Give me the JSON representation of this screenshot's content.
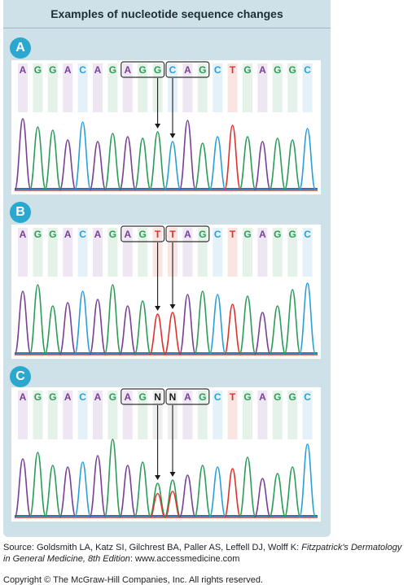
{
  "figure": {
    "title": "Examples of nucleotide sequence changes"
  },
  "colors": {
    "A": "#7a3f96",
    "G": "#2a9d57",
    "C": "#2aa0d8",
    "T": "#e0322c",
    "N": "#1a1a1a",
    "badge": "#2aa8cf",
    "panel_bg": "#cfe1e8"
  },
  "panels": [
    {
      "badge": "A",
      "sequence": [
        "A",
        "G",
        "G",
        "A",
        "C",
        "A",
        "G",
        "A",
        "G",
        "G",
        "C",
        "A",
        "G",
        "C",
        "T",
        "G",
        "A",
        "G",
        "G",
        "C"
      ],
      "boxed_groups": [
        [
          7,
          9
        ],
        [
          10,
          12
        ]
      ],
      "arrow_targets": [
        9,
        10
      ]
    },
    {
      "badge": "B",
      "sequence": [
        "A",
        "G",
        "G",
        "A",
        "C",
        "A",
        "G",
        "A",
        "G",
        "T",
        "T",
        "A",
        "G",
        "C",
        "T",
        "G",
        "A",
        "G",
        "G",
        "C"
      ],
      "boxed_groups": [
        [
          7,
          9
        ],
        [
          10,
          12
        ]
      ],
      "arrow_targets": [
        9,
        10
      ]
    },
    {
      "badge": "C",
      "sequence": [
        "A",
        "G",
        "G",
        "A",
        "C",
        "A",
        "G",
        "A",
        "G",
        "N",
        "N",
        "A",
        "G",
        "C",
        "T",
        "G",
        "A",
        "G",
        "G",
        "C"
      ],
      "boxed_groups": [
        [
          7,
          9
        ],
        [
          10,
          12
        ]
      ],
      "arrow_targets": [
        9,
        10
      ]
    }
  ],
  "source": {
    "prefix": "Source: Goldsmith LA, Katz SI, Gilchrest BA, Paller AS, Leffell DJ, Wolff K: ",
    "book": "Fitzpatrick's Dermatology in General Medicine, 8th Edition",
    "suffix": ": www.accessmedicine.com"
  },
  "copyright": "Copyright © The McGraw-Hill Companies, Inc. All rights reserved."
}
